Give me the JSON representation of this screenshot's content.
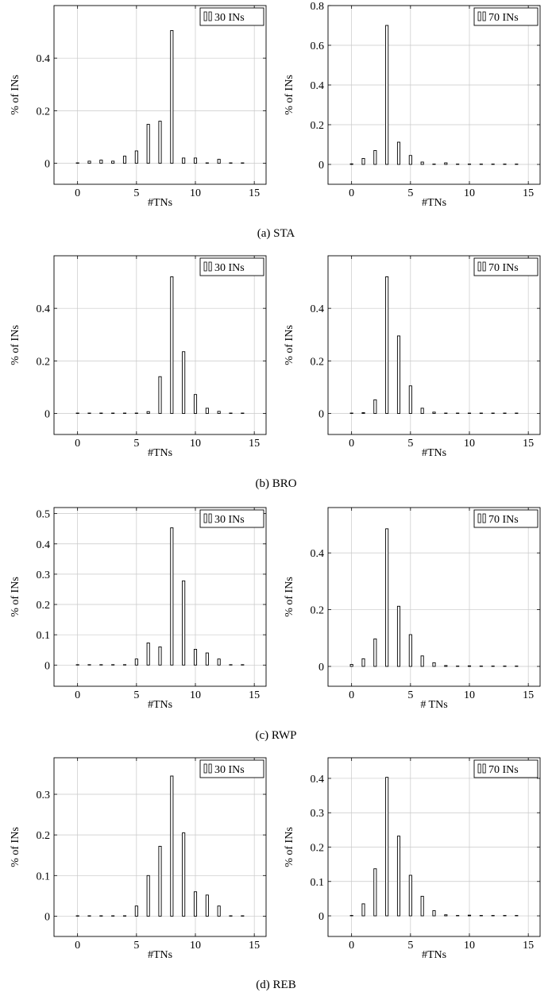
{
  "chart_data": [
    {
      "type": "bar",
      "row": 0,
      "col": 0,
      "x": [
        0,
        1,
        2,
        3,
        4,
        5,
        6,
        7,
        8,
        9,
        10,
        11,
        12,
        13,
        14
      ],
      "values": [
        0,
        0.008,
        0.012,
        0.008,
        0.027,
        0.047,
        0.148,
        0.16,
        0.505,
        0.02,
        0.02,
        0,
        0.015,
        0,
        0
      ],
      "xlabel": "#TNs",
      "ylabel": "% of INs",
      "xlim": [
        -2,
        16
      ],
      "ylim": [
        -0.08,
        0.6
      ],
      "xticks": [
        0,
        5,
        10,
        15
      ],
      "yticks": [
        0,
        0.2,
        0.4
      ],
      "legend": "30 INs",
      "legend_position": "top-right",
      "grid": true
    },
    {
      "type": "bar",
      "row": 0,
      "col": 1,
      "x": [
        0,
        1,
        2,
        3,
        4,
        5,
        6,
        7,
        8,
        9,
        10,
        11,
        12,
        13,
        14
      ],
      "values": [
        0.003,
        0.03,
        0.07,
        0.7,
        0.112,
        0.045,
        0.012,
        0,
        0.008,
        0,
        0,
        0,
        0,
        0,
        0
      ],
      "xlabel": "#TNs",
      "ylabel": "% of INs",
      "xlim": [
        -2,
        16
      ],
      "ylim": [
        -0.1,
        0.8
      ],
      "xticks": [
        0,
        5,
        10,
        15
      ],
      "yticks": [
        0,
        0.2,
        0.4,
        0.6,
        0.8
      ],
      "legend": "70 INs",
      "legend_position": "top-right",
      "grid": true
    },
    {
      "type": "bar",
      "row": 1,
      "col": 0,
      "x": [
        0,
        1,
        2,
        3,
        4,
        5,
        6,
        7,
        8,
        9,
        10,
        11,
        12,
        13,
        14
      ],
      "values": [
        0,
        0,
        0,
        0,
        0,
        0,
        0.007,
        0.14,
        0.52,
        0.235,
        0.072,
        0.02,
        0.008,
        0,
        0
      ],
      "xlabel": "#TNs",
      "ylabel": "% of INs",
      "xlim": [
        -2,
        16
      ],
      "ylim": [
        -0.08,
        0.6
      ],
      "xticks": [
        0,
        5,
        10,
        15
      ],
      "yticks": [
        0,
        0.2,
        0.4
      ],
      "legend": "30 INs",
      "legend_position": "top-right",
      "grid": true
    },
    {
      "type": "bar",
      "row": 1,
      "col": 1,
      "x": [
        0,
        1,
        2,
        3,
        4,
        5,
        6,
        7,
        8,
        9,
        10,
        11,
        12,
        13,
        14
      ],
      "values": [
        0,
        0.003,
        0.052,
        0.52,
        0.295,
        0.105,
        0.02,
        0.005,
        0,
        0,
        0,
        0,
        0,
        0,
        0
      ],
      "xlabel": "#TNs",
      "ylabel": "% of INs",
      "xlim": [
        -2,
        16
      ],
      "ylim": [
        -0.08,
        0.6
      ],
      "xticks": [
        0,
        5,
        10,
        15
      ],
      "yticks": [
        0,
        0.2,
        0.4
      ],
      "legend": "70 INs",
      "legend_position": "top-right",
      "grid": true
    },
    {
      "type": "bar",
      "row": 2,
      "col": 0,
      "x": [
        0,
        1,
        2,
        3,
        4,
        5,
        6,
        7,
        8,
        9,
        10,
        11,
        12,
        13,
        14
      ],
      "values": [
        0,
        0,
        0,
        0,
        0,
        0.02,
        0.073,
        0.06,
        0.453,
        0.278,
        0.052,
        0.04,
        0.02,
        0,
        0
      ],
      "xlabel": "#TNs",
      "ylabel": "% of INs",
      "xlim": [
        -2,
        16
      ],
      "ylim": [
        -0.07,
        0.52
      ],
      "xticks": [
        0,
        5,
        10,
        15
      ],
      "yticks": [
        0,
        0.1,
        0.2,
        0.3,
        0.4,
        0.5
      ],
      "legend": "30 INs",
      "legend_position": "top-right",
      "grid": true
    },
    {
      "type": "bar",
      "row": 2,
      "col": 1,
      "x": [
        0,
        1,
        2,
        3,
        4,
        5,
        6,
        7,
        8,
        9,
        10,
        11,
        12,
        13,
        14
      ],
      "values": [
        0.007,
        0.027,
        0.097,
        0.485,
        0.212,
        0.112,
        0.037,
        0.013,
        0.003,
        0,
        0.002,
        0,
        0,
        0,
        0
      ],
      "xlabel": "# TNs",
      "ylabel": "% of INs",
      "xlim": [
        -2,
        16
      ],
      "ylim": [
        -0.07,
        0.56
      ],
      "xticks": [
        0,
        5,
        10,
        15
      ],
      "yticks": [
        0,
        0.2,
        0.4
      ],
      "legend": "70 INs",
      "legend_position": "top-right",
      "grid": true
    },
    {
      "type": "bar",
      "row": 3,
      "col": 0,
      "x": [
        0,
        1,
        2,
        3,
        4,
        5,
        6,
        7,
        8,
        9,
        10,
        11,
        12,
        13,
        14
      ],
      "values": [
        0,
        0,
        0,
        0,
        0,
        0.025,
        0.1,
        0.172,
        0.345,
        0.205,
        0.06,
        0.052,
        0.025,
        0,
        0
      ],
      "xlabel": "#TNs",
      "ylabel": "% of INs",
      "xlim": [
        -2,
        16
      ],
      "ylim": [
        -0.05,
        0.39
      ],
      "xticks": [
        0,
        5,
        10,
        15
      ],
      "yticks": [
        0,
        0.1,
        0.2,
        0.3
      ],
      "legend": "30 INs",
      "legend_position": "top-right",
      "grid": true
    },
    {
      "type": "bar",
      "row": 3,
      "col": 1,
      "x": [
        0,
        1,
        2,
        3,
        4,
        5,
        6,
        7,
        8,
        9,
        10,
        11,
        12,
        13,
        14
      ],
      "values": [
        0,
        0.035,
        0.137,
        0.403,
        0.232,
        0.118,
        0.057,
        0.015,
        0.003,
        0,
        0.002,
        0,
        0,
        0,
        0
      ],
      "xlabel": "#TNs",
      "ylabel": "% of INs",
      "xlim": [
        -2,
        16
      ],
      "ylim": [
        -0.06,
        0.46
      ],
      "xticks": [
        0,
        5,
        10,
        15
      ],
      "yticks": [
        0,
        0.1,
        0.2,
        0.3,
        0.4
      ],
      "legend": "70 INs",
      "legend_position": "top-right",
      "grid": true
    }
  ],
  "captions": [
    "(a) STA",
    "(b) BRO",
    "(c) RWP",
    "(d) REB"
  ]
}
